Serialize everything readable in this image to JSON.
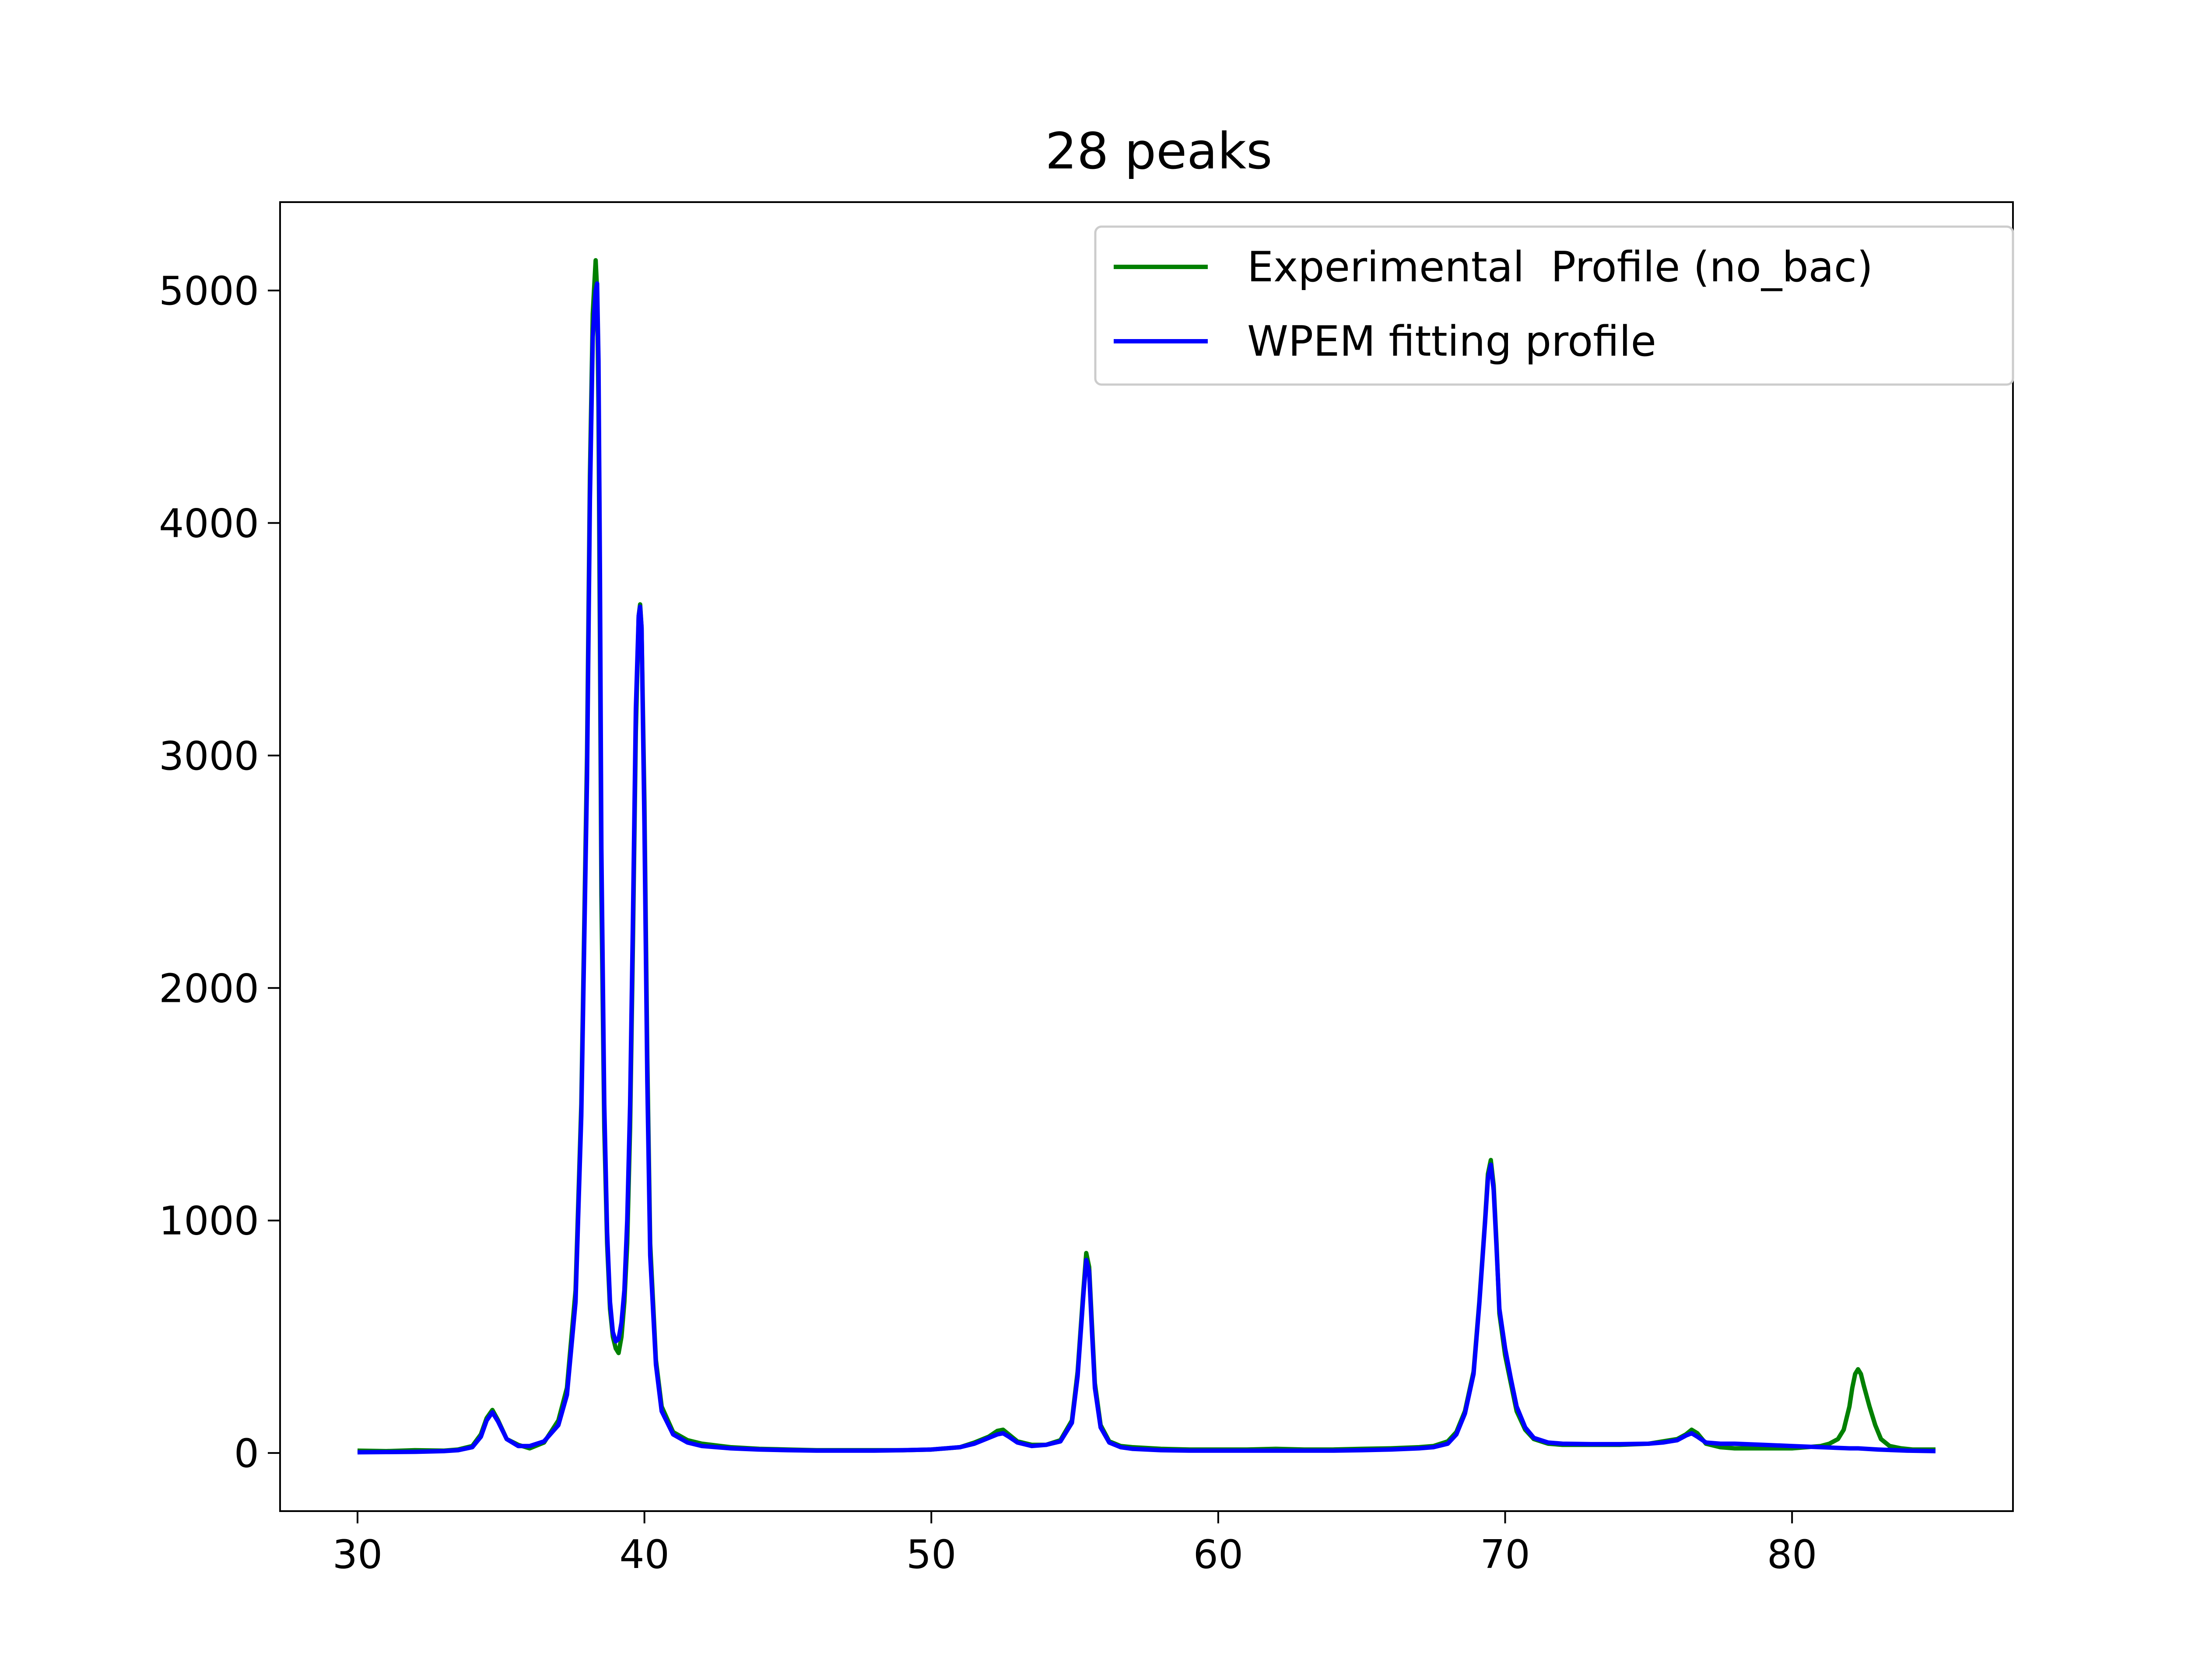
{
  "chart_data": {
    "type": "line",
    "title": "28 peaks",
    "xlabel": "",
    "ylabel": "",
    "xlim": [
      27.3,
      87.7
    ],
    "ylim": [
      -250,
      5380
    ],
    "xticks": [
      "30",
      "40",
      "50",
      "60",
      "70",
      "80"
    ],
    "yticks": [
      "0",
      "1000",
      "2000",
      "3000",
      "4000",
      "5000"
    ],
    "legend_position": "upper right",
    "grid": false,
    "series": [
      {
        "name": "Experimental  Profile (no_bac)",
        "color": "#008000",
        "x": [
          30,
          31,
          32,
          33,
          33.5,
          34,
          34.3,
          34.5,
          34.7,
          34.9,
          35.2,
          35.6,
          36,
          36.5,
          37,
          37.3,
          37.6,
          37.8,
          38.0,
          38.1,
          38.2,
          38.3,
          38.35,
          38.4,
          38.45,
          38.5,
          38.6,
          38.7,
          38.8,
          38.9,
          39.0,
          39.1,
          39.2,
          39.3,
          39.4,
          39.5,
          39.6,
          39.7,
          39.8,
          39.85,
          39.9,
          40.0,
          40.1,
          40.2,
          40.4,
          40.6,
          41.0,
          41.5,
          42.0,
          43,
          44,
          45,
          46,
          47,
          48,
          49,
          50,
          51,
          51.5,
          52.0,
          52.3,
          52.5,
          52.7,
          53.0,
          53.5,
          54,
          54.5,
          54.9,
          55.1,
          55.3,
          55.4,
          55.5,
          55.6,
          55.7,
          55.9,
          56.2,
          56.6,
          57,
          58,
          59,
          60,
          61,
          62,
          63,
          64,
          65,
          66,
          67,
          67.5,
          68,
          68.3,
          68.6,
          68.9,
          69.1,
          69.3,
          69.4,
          69.5,
          69.6,
          69.7,
          69.8,
          70.0,
          70.2,
          70.4,
          70.7,
          71.0,
          71.5,
          72,
          73,
          74,
          75,
          75.5,
          76.0,
          76.3,
          76.5,
          76.7,
          77.0,
          77.5,
          78,
          79,
          80,
          80.5,
          81.0,
          81.3,
          81.6,
          81.8,
          82.0,
          82.1,
          82.2,
          82.3,
          82.4,
          82.5,
          82.7,
          82.9,
          83.1,
          83.4,
          83.8,
          84.2,
          84.6,
          85
        ],
        "y": [
          10,
          8,
          12,
          10,
          15,
          30,
          80,
          150,
          185,
          140,
          60,
          35,
          20,
          45,
          140,
          280,
          700,
          1500,
          3000,
          4200,
          4900,
          5130,
          5000,
          4500,
          3500,
          2400,
          1400,
          900,
          620,
          500,
          450,
          430,
          500,
          650,
          900,
          1400,
          2200,
          3100,
          3600,
          3650,
          3550,
          2800,
          1700,
          900,
          400,
          200,
          90,
          55,
          40,
          25,
          18,
          15,
          12,
          12,
          12,
          12,
          15,
          25,
          45,
          70,
          95,
          100,
          80,
          50,
          35,
          35,
          55,
          140,
          350,
          700,
          860,
          800,
          550,
          300,
          120,
          50,
          30,
          25,
          18,
          15,
          15,
          15,
          18,
          15,
          15,
          18,
          20,
          25,
          30,
          50,
          90,
          180,
          350,
          650,
          1000,
          1200,
          1260,
          1150,
          900,
          600,
          420,
          300,
          180,
          100,
          60,
          40,
          35,
          35,
          35,
          40,
          50,
          60,
          80,
          100,
          85,
          40,
          25,
          20,
          20,
          20,
          25,
          30,
          40,
          60,
          100,
          200,
          280,
          340,
          360,
          340,
          290,
          200,
          120,
          60,
          30,
          20,
          15,
          15,
          15
        ]
      },
      {
        "name": "WPEM fitting profile",
        "color": "#0000ff",
        "x": [
          30,
          31,
          32,
          33,
          33.5,
          34,
          34.3,
          34.5,
          34.7,
          34.9,
          35.2,
          35.6,
          36,
          36.5,
          37,
          37.3,
          37.6,
          37.8,
          38.0,
          38.1,
          38.2,
          38.3,
          38.35,
          38.4,
          38.45,
          38.5,
          38.6,
          38.7,
          38.8,
          38.9,
          39.0,
          39.1,
          39.2,
          39.3,
          39.4,
          39.5,
          39.6,
          39.7,
          39.8,
          39.85,
          39.9,
          40.0,
          40.1,
          40.2,
          40.4,
          40.6,
          41.0,
          41.5,
          42.0,
          43,
          44,
          45,
          46,
          47,
          48,
          49,
          50,
          51,
          51.5,
          52.0,
          52.3,
          52.5,
          52.7,
          53.0,
          53.5,
          54,
          54.5,
          54.9,
          55.1,
          55.3,
          55.4,
          55.5,
          55.6,
          55.7,
          55.9,
          56.2,
          56.6,
          57,
          58,
          59,
          60,
          61,
          62,
          63,
          64,
          65,
          66,
          67,
          67.5,
          68,
          68.3,
          68.6,
          68.9,
          69.1,
          69.3,
          69.4,
          69.5,
          69.6,
          69.7,
          69.8,
          70.0,
          70.2,
          70.4,
          70.7,
          71.0,
          71.5,
          72,
          73,
          74,
          75,
          75.5,
          76.0,
          76.3,
          76.5,
          76.7,
          77.0,
          77.5,
          78,
          79,
          80,
          81,
          82,
          82.3,
          83,
          84,
          85
        ],
        "y": [
          3,
          4,
          5,
          8,
          12,
          25,
          70,
          140,
          175,
          135,
          60,
          30,
          30,
          50,
          120,
          250,
          650,
          1450,
          2900,
          4100,
          4800,
          5000,
          5030,
          4700,
          3800,
          2600,
          1500,
          950,
          650,
          520,
          480,
          490,
          560,
          700,
          1000,
          1500,
          2300,
          3200,
          3600,
          3640,
          3550,
          2700,
          1600,
          850,
          380,
          180,
          80,
          45,
          30,
          20,
          15,
          12,
          10,
          10,
          10,
          12,
          15,
          25,
          40,
          65,
          80,
          85,
          70,
          45,
          30,
          35,
          50,
          130,
          330,
          680,
          830,
          780,
          520,
          280,
          110,
          45,
          25,
          18,
          12,
          10,
          10,
          10,
          10,
          10,
          10,
          12,
          15,
          20,
          25,
          40,
          80,
          170,
          340,
          640,
          990,
          1180,
          1240,
          1130,
          880,
          620,
          450,
          320,
          200,
          110,
          65,
          45,
          40,
          38,
          38,
          40,
          45,
          55,
          75,
          85,
          70,
          45,
          40,
          40,
          35,
          30,
          25,
          20,
          20,
          15,
          10,
          8
        ]
      }
    ]
  }
}
